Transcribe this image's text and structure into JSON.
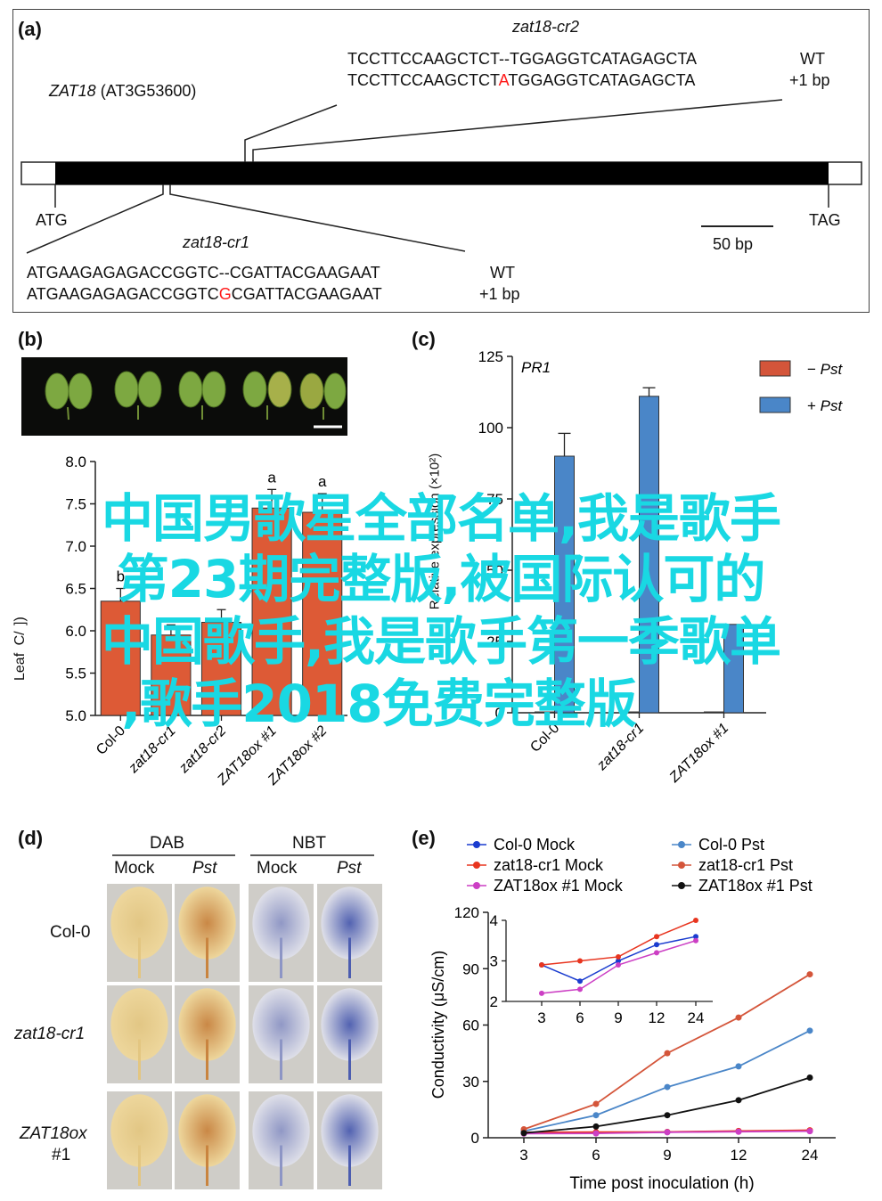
{
  "panel_a": {
    "label": "(a)",
    "gene_name": "ZAT18",
    "gene_locus": "(AT3G53600)",
    "start_codon": "ATG",
    "stop_codon": "TAG",
    "scale_bar": "50 bp",
    "cr2": {
      "title": "zat18-cr2",
      "wt_prefix": "TCCTTCCAAGCTCT",
      "wt_suffix": "--TGGAGGTCATAGAGCTA",
      "mut_prefix": "TCCTTCCAAGCTCT",
      "mut_insert": "A",
      "mut_suffix": "TGGAGGTCATAGAGCTA",
      "wt_tag": "WT",
      "mut_tag": "+1 bp"
    },
    "cr1": {
      "title": "zat18-cr1",
      "wt_prefix": "ATGAAGAGAGACCGGTC",
      "wt_suffix": "--CGATTACGAAGAAT",
      "mut_prefix": "ATGAAGAGAGACCGGTC",
      "mut_insert": "G",
      "mut_suffix": "CGATTACGAAGAAT",
      "wt_tag": "WT",
      "mut_tag": "+1 bp"
    },
    "insert_color": "#ff1a1a"
  },
  "panel_b": {
    "label": "(b)",
    "ylabel_fragment": "Leaf",
    "ylabel_top_fragment": "])",
    "ylabel_mid_fragment": "C/",
    "chart_data": {
      "type": "bar",
      "categories": [
        "Col-0",
        "zat18-cr1",
        "zat18-cr2",
        "ZAT18ox #1",
        "ZAT18ox #2"
      ],
      "values": [
        6.35,
        5.95,
        6.1,
        7.45,
        7.4
      ],
      "errors": [
        0.15,
        0.12,
        0.15,
        0.22,
        0.22
      ],
      "letters": [
        "b",
        "",
        "",
        "a",
        "a"
      ],
      "ylim": [
        5.0,
        8.0
      ],
      "yticks": [
        "5.0",
        "5.5",
        "6.0",
        "6.5",
        "7.0",
        "7.5",
        "8.0"
      ],
      "bar_color": "#dd5a36"
    }
  },
  "panel_c": {
    "label": "(c)",
    "title": "PR1",
    "ylabel": "Relative expression (×10²)",
    "chart_data": {
      "type": "bar",
      "categories": [
        "Col-0",
        "zat18-cr1",
        "ZAT18ox #1"
      ],
      "series": [
        {
          "name": "− Pst",
          "values": [
            0.3,
            0.3,
            0.3
          ],
          "errors": [
            0,
            0,
            0
          ]
        },
        {
          "name": "+ Pst",
          "values": [
            90,
            111,
            31
          ],
          "errors": [
            8,
            3,
            0
          ]
        }
      ],
      "ylim": [
        0,
        125
      ],
      "yticks": [
        "0",
        "25",
        "50",
        "75",
        "100",
        "125"
      ],
      "legend_minus": "−",
      "legend_minus_it": "Pst",
      "legend_plus": "+",
      "legend_plus_it": "Pst",
      "colors": [
        "#d4553a",
        "#4a86c8"
      ]
    }
  },
  "panel_d": {
    "label": "(d)",
    "group_dab": "DAB",
    "group_nbt": "NBT",
    "col_mock1": "Mock",
    "col_pst1": "Pst",
    "col_mock2": "Mock",
    "col_pst2": "Pst",
    "row1": "Col-0",
    "row2": "zat18-cr1",
    "row3a": "ZAT18ox",
    "row3b": "#1",
    "dab_light": "#efd79a",
    "dab_dark": "#c9843f",
    "nbt_light": "#dfe0ea",
    "nbt_dark": "#4c5db0"
  },
  "panel_e": {
    "label": "(e)",
    "legend": [
      {
        "lab": "Col-0 Mock",
        "color": "#1a3ccf"
      },
      {
        "lab": "zat18-cr1 Mock",
        "color": "#e8351f"
      },
      {
        "lab": "ZAT18ox #1 Mock",
        "color": "#cc3fc4"
      },
      {
        "lab": "Col-0 Pst",
        "color": "#4a86c8"
      },
      {
        "lab": "zat18-cr1 Pst",
        "color": "#d4553a"
      },
      {
        "lab": "ZAT18ox #1 Pst",
        "color": "#111111"
      }
    ],
    "ylabel": "Conductivity (μS/cm)",
    "xlabel": "Time post inoculation (h)",
    "chart_data": {
      "type": "line",
      "x": [
        3,
        6,
        9,
        12,
        24
      ],
      "xticks": [
        "3",
        "6",
        "9",
        "12",
        "24"
      ],
      "ylim": [
        0,
        120
      ],
      "yticks": [
        "0",
        "30",
        "60",
        "90",
        "120"
      ],
      "series": [
        {
          "name": "Col-0 Mock",
          "values": [
            2.9,
            2.5,
            3.0,
            3.4,
            3.6
          ]
        },
        {
          "name": "zat18-cr1 Mock",
          "values": [
            2.9,
            3.0,
            3.1,
            3.6,
            4.0
          ]
        },
        {
          "name": "ZAT18ox #1 Mock",
          "values": [
            2.2,
            2.3,
            2.9,
            3.2,
            3.5
          ]
        },
        {
          "name": "Col-0 Pst",
          "values": [
            3.5,
            12,
            27,
            38,
            57
          ]
        },
        {
          "name": "zat18-cr1 Pst",
          "values": [
            4.5,
            18,
            45,
            64,
            87
          ]
        },
        {
          "name": "ZAT18ox #1 Pst",
          "values": [
            2.5,
            6,
            12,
            20,
            32
          ]
        }
      ],
      "inset": {
        "ylim": [
          2,
          4
        ],
        "yticks": [
          "2",
          "3",
          "4"
        ],
        "xticks": [
          "3",
          "6",
          "9",
          "12",
          "24"
        ]
      }
    }
  },
  "overlay": {
    "line1": "中国男歌星全部名单,我是歌手",
    "line2": "第23期完整版,被国际认可的",
    "line3": "中国歌手,我是歌手第一季歌单",
    "line4": ",歌手2018免费完整版"
  }
}
